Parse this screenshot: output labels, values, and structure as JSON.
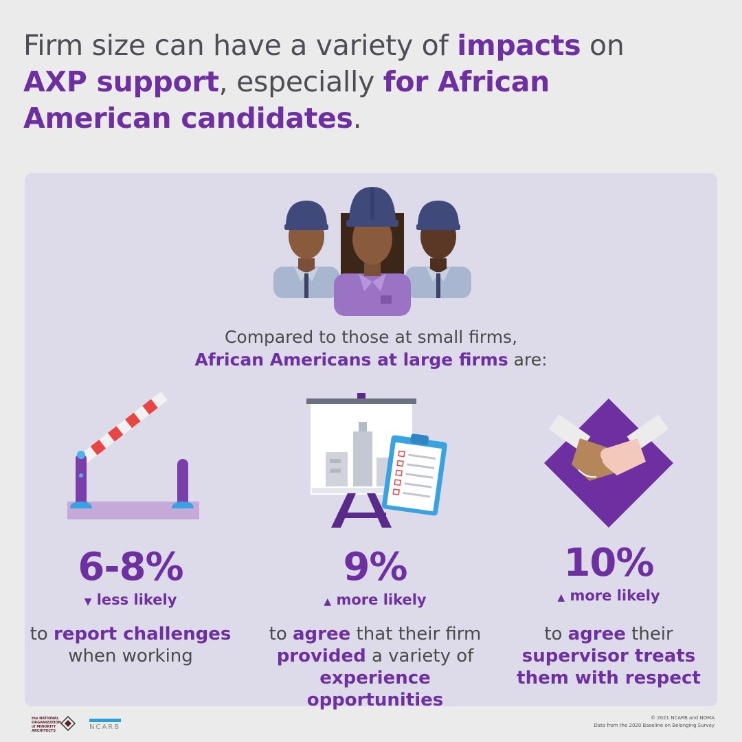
{
  "headline": {
    "p1": "Firm size can have a variety of ",
    "p2": "impacts",
    "p3": " on ",
    "p4": "AXP support",
    "p5": ", especially ",
    "p6": "for African American candidates",
    "p7": "."
  },
  "intro": {
    "line1": "Compared to those at small firms,",
    "line2_bold": "African Americans at large firms",
    "line2_rest": " are:"
  },
  "stats": [
    {
      "value": "6-8%",
      "arrow": "▼",
      "direction": "less likely",
      "d1": "to ",
      "d2": "report challenges",
      "d3": "when working",
      "icon": "barrier-gate-icon"
    },
    {
      "value": "9%",
      "arrow": "▲",
      "direction": "more likely",
      "d1": "to ",
      "d2": "agree",
      "d3": " that their firm",
      "d4": "provided",
      "d5": " a variety of",
      "d6": "experience opportunities",
      "icon": "presentation-board-icon"
    },
    {
      "value": "10%",
      "arrow": "▲",
      "direction": "more likely",
      "d1": "to ",
      "d2": "agree",
      "d3": " their",
      "d4": "supervisor treats",
      "d5": "them with respect",
      "icon": "handshake-icon"
    }
  ],
  "footer": {
    "noma": "the NATIONAL ORGANIZATION of MINORITY ARCHITECTS",
    "ncarb": "NCARB",
    "copyright": "© 2021 NCARB and NOMA",
    "source": "Data from the 2020 Baseline on Belonging Survey"
  },
  "colors": {
    "accent": "#6e2fa0",
    "card": "#dddbe9",
    "background": "#ebebeb"
  }
}
